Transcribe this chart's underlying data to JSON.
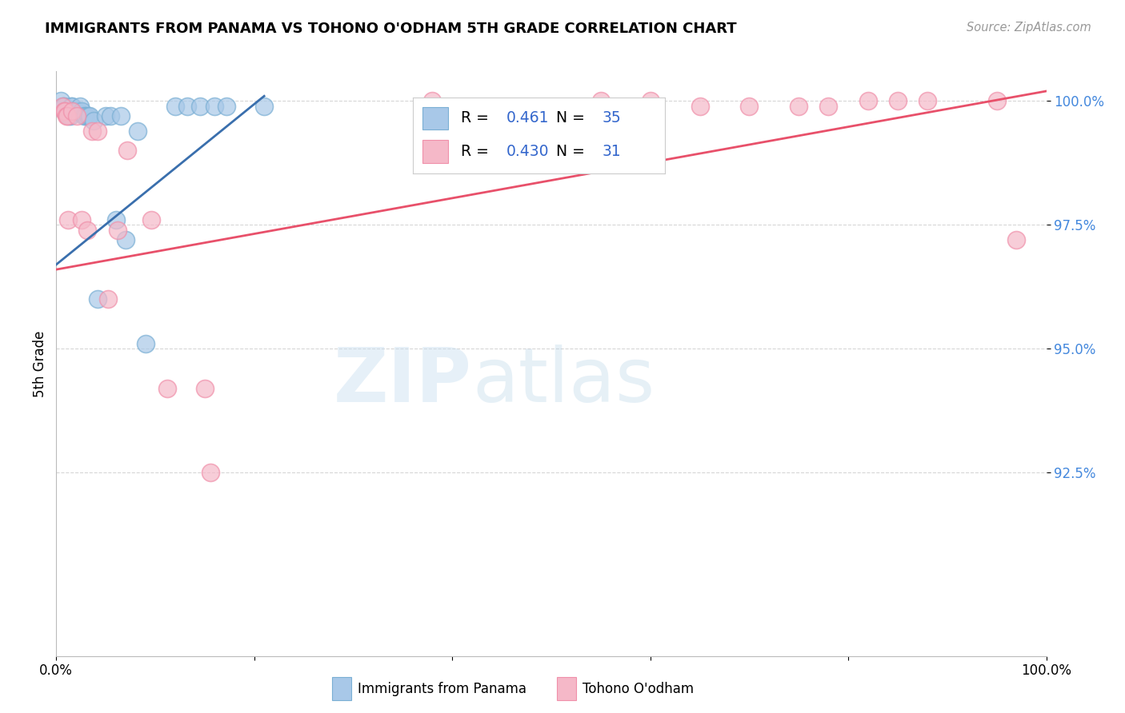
{
  "title": "IMMIGRANTS FROM PANAMA VS TOHONO O'ODHAM 5TH GRADE CORRELATION CHART",
  "source": "Source: ZipAtlas.com",
  "ylabel": "5th Grade",
  "xlim": [
    0.0,
    1.0
  ],
  "ylim": [
    0.888,
    1.006
  ],
  "yticks": [
    0.925,
    0.95,
    0.975,
    1.0
  ],
  "ytick_labels": [
    "92.5%",
    "95.0%",
    "97.5%",
    "100.0%"
  ],
  "xticks": [
    0.0,
    0.2,
    0.4,
    0.6,
    0.8,
    1.0
  ],
  "xtick_labels": [
    "0.0%",
    "",
    "",
    "",
    "",
    "100.0%"
  ],
  "blue_color": "#a8c8e8",
  "pink_color": "#f5b8c8",
  "blue_edge_color": "#7aafd4",
  "pink_edge_color": "#f090aa",
  "blue_line_color": "#3a6fad",
  "pink_line_color": "#e8506a",
  "legend_color": "#3366cc",
  "blue_R": "0.461",
  "blue_N": "35",
  "pink_R": "0.430",
  "pink_N": "31",
  "watermark_zip": "ZIP",
  "watermark_atlas": "atlas",
  "blue_scatter_x": [
    0.005,
    0.007,
    0.008,
    0.009,
    0.01,
    0.011,
    0.012,
    0.013,
    0.014,
    0.015,
    0.016,
    0.018,
    0.02,
    0.022,
    0.024,
    0.026,
    0.028,
    0.03,
    0.032,
    0.034,
    0.038,
    0.042,
    0.05,
    0.055,
    0.06,
    0.065,
    0.07,
    0.082,
    0.09,
    0.12,
    0.132,
    0.145,
    0.16,
    0.172,
    0.21
  ],
  "blue_scatter_y": [
    1.0,
    0.999,
    0.999,
    0.998,
    0.998,
    0.998,
    0.998,
    0.997,
    0.997,
    0.999,
    0.999,
    0.998,
    0.998,
    0.998,
    0.999,
    0.998,
    0.997,
    0.997,
    0.997,
    0.997,
    0.996,
    0.96,
    0.997,
    0.997,
    0.976,
    0.997,
    0.972,
    0.994,
    0.951,
    0.999,
    0.999,
    0.999,
    0.999,
    0.999,
    0.999
  ],
  "pink_scatter_x": [
    0.006,
    0.008,
    0.009,
    0.01,
    0.011,
    0.012,
    0.016,
    0.021,
    0.026,
    0.031,
    0.036,
    0.042,
    0.052,
    0.062,
    0.072,
    0.096,
    0.112,
    0.15,
    0.156,
    0.38,
    0.55,
    0.6,
    0.65,
    0.7,
    0.75,
    0.78,
    0.82,
    0.85,
    0.88,
    0.95,
    0.97
  ],
  "pink_scatter_y": [
    0.999,
    0.998,
    0.998,
    0.997,
    0.997,
    0.976,
    0.998,
    0.997,
    0.976,
    0.974,
    0.994,
    0.994,
    0.96,
    0.974,
    0.99,
    0.976,
    0.942,
    0.942,
    0.925,
    1.0,
    1.0,
    1.0,
    0.999,
    0.999,
    0.999,
    0.999,
    1.0,
    1.0,
    1.0,
    1.0,
    0.972
  ],
  "blue_line_x": [
    0.0,
    0.21
  ],
  "blue_line_y": [
    0.967,
    1.001
  ],
  "pink_line_x": [
    0.0,
    1.0
  ],
  "pink_line_y": [
    0.966,
    1.002
  ],
  "bottom_legend_blue_label": "Immigrants from Panama",
  "bottom_legend_pink_label": "Tohono O'odham"
}
